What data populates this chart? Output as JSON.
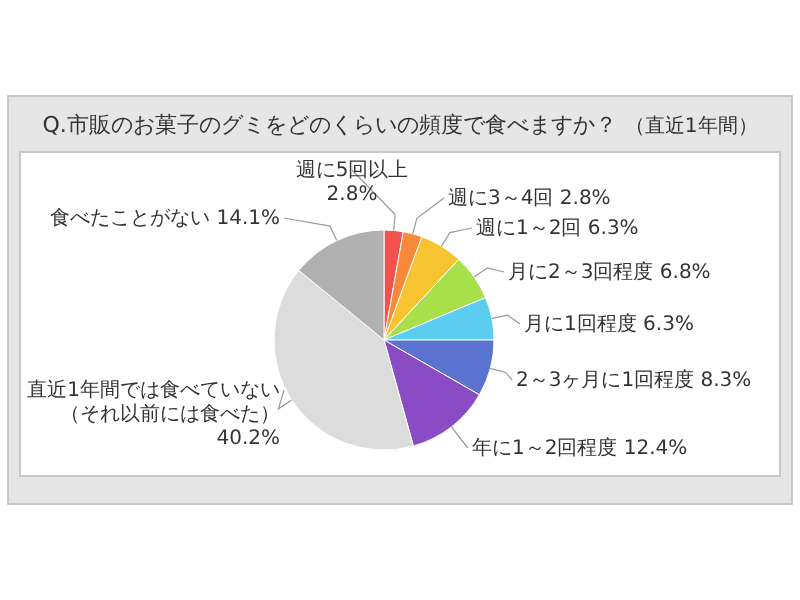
{
  "chart_data": {
    "type": "pie",
    "title": "Q.市販のお菓子のグミをどのくらいの頻度で食べますか？",
    "subtitle": "（直近1年間）",
    "categories": [
      "週に5回以上",
      "週に3～4回",
      "週に1～2回",
      "月に2～3回程度",
      "月に1回程度",
      "2～3ヶ月に1回程度",
      "年に1～2回程度",
      "直近1年間では食べていない（それ以前には食べた）",
      "食べたことがない"
    ],
    "values": [
      2.8,
      2.8,
      6.3,
      6.8,
      6.3,
      8.3,
      12.4,
      40.2,
      14.1
    ],
    "value_labels": [
      "2.8%",
      "2.8%",
      "6.3%",
      "6.8%",
      "6.3%",
      "8.3%",
      "12.4%",
      "40.2%",
      "14.1%"
    ],
    "colors": [
      "#f4524d",
      "#f7893a",
      "#f6c431",
      "#a8e04a",
      "#5bcdf0",
      "#5a72d0",
      "#8a4cc4",
      "#dcdcdc",
      "#b0b0b0"
    ]
  }
}
